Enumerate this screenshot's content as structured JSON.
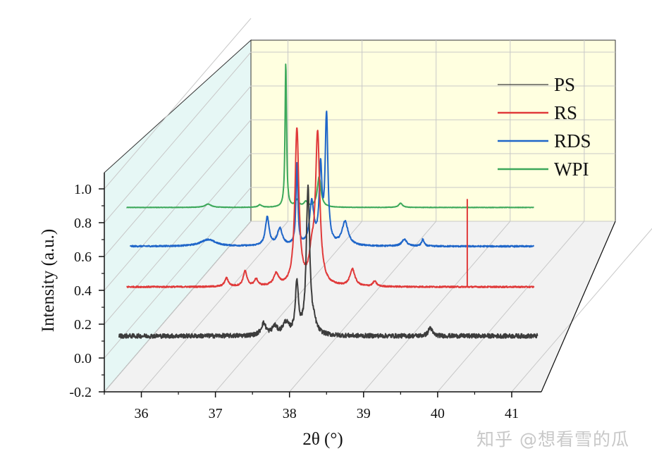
{
  "chart_data": {
    "type": "line",
    "style": "3d-waterfall",
    "xlabel": "2θ (°)",
    "ylabel": "Intensity (a.u.)",
    "xlim": [
      35.5,
      41.4
    ],
    "ylim": [
      -0.2,
      1.1
    ],
    "x_ticks": [
      "36",
      "37",
      "38",
      "39",
      "40",
      "41"
    ],
    "y_ticks": [
      "-0.2",
      "0.0",
      "0.2",
      "0.4",
      "0.6",
      "0.8",
      "1.0"
    ],
    "grid": true,
    "legend_position": "top-right",
    "series": [
      {
        "name": "PS",
        "color": "#3c3c3c",
        "baseline": 0.13,
        "x_range": [
          35.7,
          41.35
        ],
        "noise": 0.013,
        "peaks": [
          {
            "x": 37.65,
            "height": 0.07,
            "width": 0.04
          },
          {
            "x": 37.8,
            "height": 0.05,
            "width": 0.04
          },
          {
            "x": 37.95,
            "height": 0.07,
            "width": 0.05
          },
          {
            "x": 38.1,
            "height": 0.3,
            "width": 0.025
          },
          {
            "x": 38.25,
            "height": 0.86,
            "width": 0.028
          },
          {
            "x": 38.33,
            "height": 0.05,
            "width": 0.04
          },
          {
            "x": 39.9,
            "height": 0.05,
            "width": 0.03
          }
        ]
      },
      {
        "name": "RS",
        "color": "#e03a3a",
        "baseline": 0.42,
        "x_range": [
          35.8,
          41.3
        ],
        "noise": 0.004,
        "peaks": [
          {
            "x": 37.15,
            "height": 0.05,
            "width": 0.03
          },
          {
            "x": 37.4,
            "height": 0.09,
            "width": 0.03
          },
          {
            "x": 37.55,
            "height": 0.04,
            "width": 0.03
          },
          {
            "x": 37.82,
            "height": 0.07,
            "width": 0.04
          },
          {
            "x": 38.1,
            "height": 0.92,
            "width": 0.032
          },
          {
            "x": 38.3,
            "height": 0.15,
            "width": 0.04
          },
          {
            "x": 38.38,
            "height": 0.88,
            "width": 0.035
          },
          {
            "x": 38.85,
            "height": 0.1,
            "width": 0.04
          },
          {
            "x": 39.15,
            "height": 0.03,
            "width": 0.03
          }
        ]
      },
      {
        "name": "RDS",
        "color": "#1f66c9",
        "baseline": 0.66,
        "x_range": [
          35.85,
          41.3
        ],
        "noise": 0.004,
        "peaks": [
          {
            "x": 36.9,
            "height": 0.04,
            "width": 0.12
          },
          {
            "x": 37.7,
            "height": 0.17,
            "width": 0.03
          },
          {
            "x": 37.87,
            "height": 0.1,
            "width": 0.04
          },
          {
            "x": 38.1,
            "height": 0.48,
            "width": 0.015
          },
          {
            "x": 38.3,
            "height": 0.25,
            "width": 0.035
          },
          {
            "x": 38.42,
            "height": 0.44,
            "width": 0.022
          },
          {
            "x": 38.5,
            "height": 0.76,
            "width": 0.022
          },
          {
            "x": 38.75,
            "height": 0.14,
            "width": 0.05
          },
          {
            "x": 39.55,
            "height": 0.04,
            "width": 0.04
          },
          {
            "x": 39.8,
            "height": 0.04,
            "width": 0.02
          }
        ]
      },
      {
        "name": "WPI",
        "color": "#3ca85a",
        "baseline": 0.89,
        "x_range": [
          35.8,
          41.3
        ],
        "noise": 0.0012,
        "peaks": [
          {
            "x": 36.9,
            "height": 0.02,
            "width": 0.05
          },
          {
            "x": 37.6,
            "height": 0.015,
            "width": 0.03
          },
          {
            "x": 37.95,
            "height": 0.85,
            "width": 0.012
          },
          {
            "x": 38.1,
            "height": 0.04,
            "width": 0.03
          },
          {
            "x": 38.22,
            "height": 0.03,
            "width": 0.03
          },
          {
            "x": 38.4,
            "height": 0.18,
            "width": 0.03
          },
          {
            "x": 39.5,
            "height": 0.025,
            "width": 0.03
          }
        ]
      }
    ],
    "annotation_vline": {
      "x": 40.4,
      "from": 0.42,
      "to": 0.94,
      "color": "#e03a3a"
    }
  },
  "watermark": "知乎 @想看雪的瓜"
}
